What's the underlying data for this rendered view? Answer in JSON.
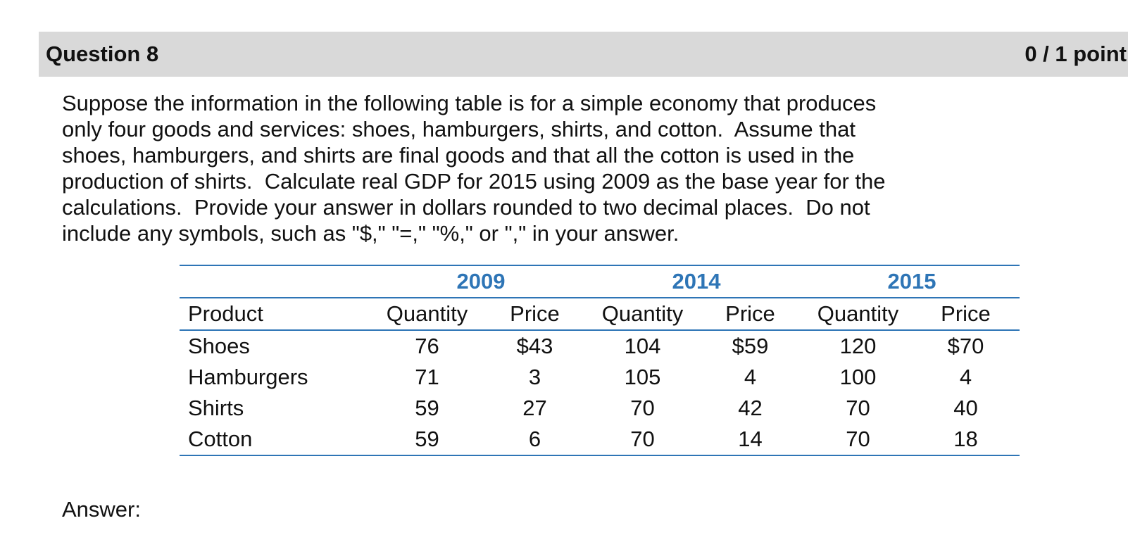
{
  "header": {
    "question_label": "Question 8",
    "score_label": "0 / 1 point"
  },
  "question": {
    "lines": [
      "Suppose the information in the following table is for a simple economy that produces",
      "only four goods and services: shoes, hamburgers, shirts, and cotton.  Assume that",
      "shoes, hamburgers, and shirts are final goods and that all the cotton is used in the",
      "production of shirts.  Calculate real GDP for 2015 using 2009 as the base year for the",
      "calculations.  Provide your answer in dollars rounded to two decimal places.  Do not",
      "include any symbols, such as \"$,\" \"=,\" \"%,\" or \",\" in your answer."
    ]
  },
  "table": {
    "accent_color": "#2e75b6",
    "years": [
      "2009",
      "2014",
      "2015"
    ],
    "columns": [
      "Product",
      "Quantity",
      "Price",
      "Quantity",
      "Price",
      "Quantity",
      "Price"
    ],
    "rows": [
      [
        "Shoes",
        "76",
        "$43",
        "104",
        "$59",
        "120",
        "$70"
      ],
      [
        "Hamburgers",
        "71",
        "3",
        "105",
        "4",
        "100",
        "4"
      ],
      [
        "Shirts",
        "59",
        "27",
        "70",
        "42",
        "70",
        "40"
      ],
      [
        "Cotton",
        "59",
        "6",
        "70",
        "14",
        "70",
        "18"
      ]
    ]
  },
  "answer": {
    "label": "Answer:"
  }
}
